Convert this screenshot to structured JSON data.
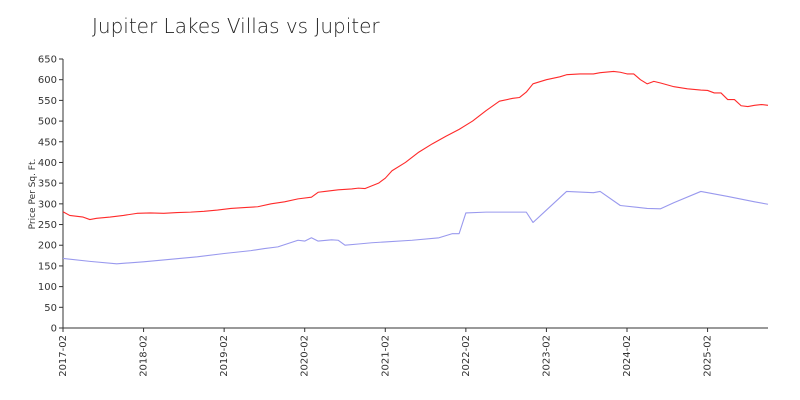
{
  "chart_data": {
    "type": "line",
    "title": "Jupiter Lakes Villas vs Jupiter",
    "xlabel": "",
    "ylabel": "Price Per Sq. Ft.",
    "ylim": [
      0,
      650
    ],
    "y_ticks": [
      0,
      50,
      100,
      150,
      200,
      250,
      300,
      350,
      400,
      450,
      500,
      550,
      600,
      650
    ],
    "x_ticks": [
      "2017-02",
      "2018-02",
      "2019-02",
      "2020-02",
      "2021-02",
      "2022-02",
      "2023-02",
      "2024-02",
      "2025-02"
    ],
    "x_range": [
      "2017-02",
      "2025-11"
    ],
    "grid": false,
    "legend": "none",
    "series": [
      {
        "color": "#ff2a2a",
        "points": [
          [
            "2017-02",
            281
          ],
          [
            "2017-03",
            272
          ],
          [
            "2017-05",
            268
          ],
          [
            "2017-06",
            262
          ],
          [
            "2017-07",
            265
          ],
          [
            "2017-09",
            268
          ],
          [
            "2017-11",
            272
          ],
          [
            "2018-01",
            277
          ],
          [
            "2018-03",
            278
          ],
          [
            "2018-05",
            277
          ],
          [
            "2018-07",
            279
          ],
          [
            "2018-09",
            280
          ],
          [
            "2018-11",
            282
          ],
          [
            "2019-01",
            285
          ],
          [
            "2019-03",
            289
          ],
          [
            "2019-05",
            291
          ],
          [
            "2019-07",
            293
          ],
          [
            "2019-09",
            300
          ],
          [
            "2019-11",
            305
          ],
          [
            "2020-01",
            312
          ],
          [
            "2020-03",
            316
          ],
          [
            "2020-04",
            328
          ],
          [
            "2020-05",
            330
          ],
          [
            "2020-07",
            334
          ],
          [
            "2020-09",
            336
          ],
          [
            "2020-10",
            338
          ],
          [
            "2020-11",
            337
          ],
          [
            "2021-01",
            350
          ],
          [
            "2021-02",
            362
          ],
          [
            "2021-03",
            380
          ],
          [
            "2021-05",
            400
          ],
          [
            "2021-07",
            425
          ],
          [
            "2021-09",
            445
          ],
          [
            "2021-11",
            463
          ],
          [
            "2022-01",
            480
          ],
          [
            "2022-03",
            500
          ],
          [
            "2022-05",
            525
          ],
          [
            "2022-07",
            548
          ],
          [
            "2022-09",
            555
          ],
          [
            "2022-10",
            557
          ],
          [
            "2022-11",
            570
          ],
          [
            "2022-12",
            590
          ],
          [
            "2023-02",
            600
          ],
          [
            "2023-04",
            607
          ],
          [
            "2023-05",
            612
          ],
          [
            "2023-07",
            614
          ],
          [
            "2023-09",
            614
          ],
          [
            "2023-10",
            617
          ],
          [
            "2023-12",
            620
          ],
          [
            "2024-01",
            618
          ],
          [
            "2024-02",
            614
          ],
          [
            "2024-03",
            614
          ],
          [
            "2024-04",
            600
          ],
          [
            "2024-05",
            590
          ],
          [
            "2024-06",
            596
          ],
          [
            "2024-07",
            592
          ],
          [
            "2024-09",
            583
          ],
          [
            "2024-11",
            578
          ],
          [
            "2025-01",
            575
          ],
          [
            "2025-02",
            574
          ],
          [
            "2025-03",
            568
          ],
          [
            "2025-04",
            568
          ],
          [
            "2025-05",
            552
          ],
          [
            "2025-06",
            552
          ],
          [
            "2025-07",
            537
          ],
          [
            "2025-08",
            535
          ],
          [
            "2025-09",
            538
          ],
          [
            "2025-10",
            540
          ],
          [
            "2025-11",
            538
          ]
        ]
      },
      {
        "color": "#9999ee",
        "points": [
          [
            "2017-02",
            168
          ],
          [
            "2017-06",
            161
          ],
          [
            "2017-10",
            155
          ],
          [
            "2018-02",
            160
          ],
          [
            "2018-06",
            166
          ],
          [
            "2018-10",
            172
          ],
          [
            "2019-02",
            180
          ],
          [
            "2019-06",
            187
          ],
          [
            "2019-08",
            192
          ],
          [
            "2019-10",
            196
          ],
          [
            "2020-01",
            212
          ],
          [
            "2020-02",
            210
          ],
          [
            "2020-03",
            218
          ],
          [
            "2020-04",
            210
          ],
          [
            "2020-06",
            213
          ],
          [
            "2020-07",
            212
          ],
          [
            "2020-08",
            200
          ],
          [
            "2020-10",
            203
          ],
          [
            "2020-12",
            206
          ],
          [
            "2021-02",
            208
          ],
          [
            "2021-06",
            212
          ],
          [
            "2021-10",
            218
          ],
          [
            "2021-12",
            228
          ],
          [
            "2022-01",
            228
          ],
          [
            "2022-02",
            278
          ],
          [
            "2022-05",
            280
          ],
          [
            "2022-08",
            280
          ],
          [
            "2022-11",
            280
          ],
          [
            "2022-12",
            255
          ],
          [
            "2023-02",
            285
          ],
          [
            "2023-05",
            330
          ],
          [
            "2023-09",
            327
          ],
          [
            "2023-10",
            330
          ],
          [
            "2024-01",
            296
          ],
          [
            "2024-05",
            289
          ],
          [
            "2024-07",
            288
          ],
          [
            "2024-09",
            303
          ],
          [
            "2025-01",
            330
          ],
          [
            "2025-05",
            318
          ],
          [
            "2025-09",
            305
          ],
          [
            "2025-11",
            299
          ]
        ]
      }
    ]
  }
}
